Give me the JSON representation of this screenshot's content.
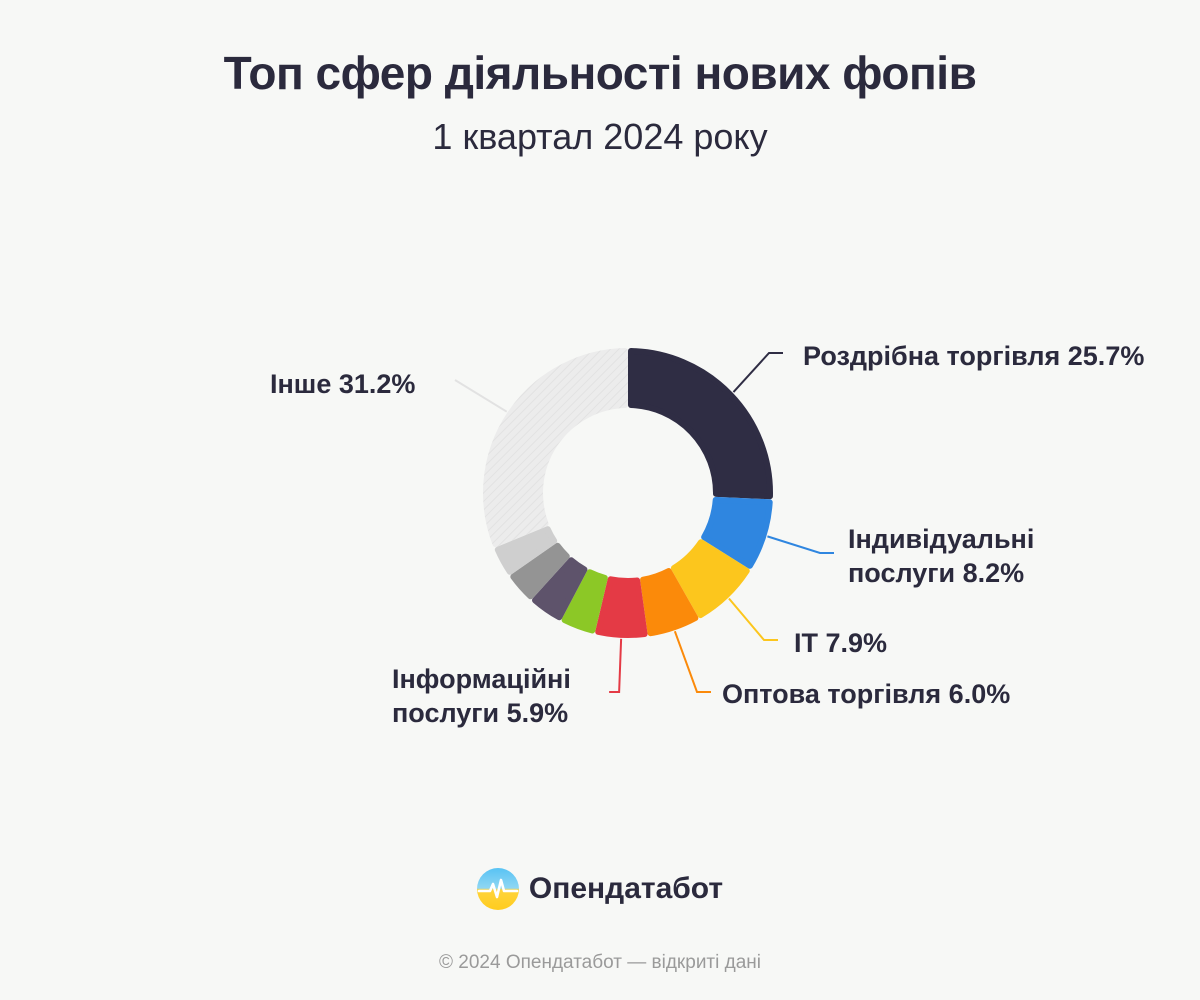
{
  "header": {
    "title": "Топ сфер діяльності нових фопів",
    "subtitle": "1 квартал 2024 року"
  },
  "chart_data": {
    "type": "pie",
    "variant": "donut",
    "title": "Топ сфер діяльності нових фопів",
    "subtitle": "1 квартал 2024 року",
    "slices": [
      {
        "label": "Роздрібна торгівля 25.7%",
        "value": 25.7,
        "color": "#2f2d44",
        "labeled": true
      },
      {
        "label": "Індивідуальні послуги 8.2%",
        "label_lines": [
          "Індивідуальні",
          "послуги 8.2%"
        ],
        "value": 8.2,
        "color": "#2f86e0",
        "labeled": true
      },
      {
        "label": "ІТ 7.9%",
        "value": 7.9,
        "color": "#fcc61d",
        "labeled": true
      },
      {
        "label": "Оптова торгівля 6.0%",
        "value": 6.0,
        "color": "#fb8a0a",
        "labeled": true
      },
      {
        "label": "Інформаційні послуги 5.9%",
        "label_lines": [
          "Інформаційні",
          "послуги 5.9%"
        ],
        "value": 5.9,
        "color": "#e43a45",
        "labeled": true
      },
      {
        "label": "",
        "value": 4.0,
        "color": "#8cc826",
        "labeled": false
      },
      {
        "label": "",
        "value": 4.0,
        "color": "#5e536b",
        "labeled": false
      },
      {
        "label": "",
        "value": 3.6,
        "color": "#949494",
        "labeled": false
      },
      {
        "label": "",
        "value": 3.5,
        "color": "#cfcfcf",
        "labeled": false
      },
      {
        "label": "Інше 31.2%",
        "value": 31.2,
        "color": "#ececec",
        "labeled": true
      }
    ],
    "legend": "none"
  },
  "brand": {
    "name": "Опендатабот",
    "icon": "opendatabot-logo-icon"
  },
  "footer": {
    "text": "© 2024 Опендатабот — відкриті дані"
  }
}
